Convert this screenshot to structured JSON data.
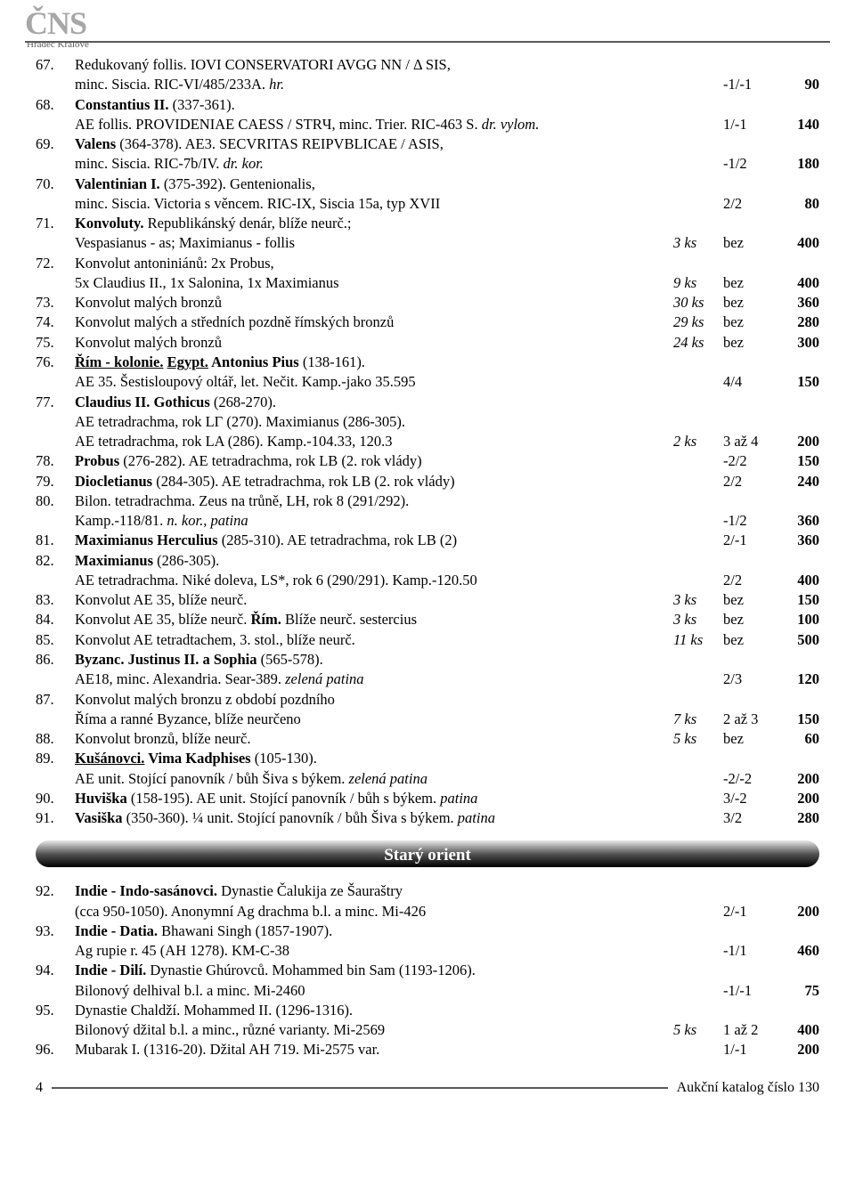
{
  "logo": {
    "main": "ČNS",
    "sub": "Hradec Králové"
  },
  "lots": [
    {
      "n": "67.",
      "lines": [
        {
          "d": [
            [
              "Redukovaný follis. IOVI CONSERVATORI AVGG NN / Δ SIS,",
              ""
            ]
          ]
        },
        {
          "d": [
            [
              "minc. Siscia. RIC-VI/485/233A. ",
              ""
            ],
            [
              "hr.",
              "i"
            ]
          ],
          "g": "-1/-1",
          "p": "90"
        }
      ]
    },
    {
      "n": "68.",
      "lines": [
        {
          "d": [
            [
              "Constantius II.",
              "b"
            ],
            [
              " (337-361).",
              ""
            ]
          ]
        },
        {
          "d": [
            [
              "AE follis. PROVIDENIAE CAESS / STRЧ, minc. Trier. RIC-463 S. ",
              ""
            ],
            [
              "dr. vylom.",
              "i"
            ]
          ],
          "g": "1/-1",
          "p": "140"
        }
      ]
    },
    {
      "n": "69.",
      "lines": [
        {
          "d": [
            [
              "Valens",
              "b"
            ],
            [
              " (364-378). AE3. SECVRITAS REIPVBLICAE / ASIS,",
              ""
            ]
          ]
        },
        {
          "d": [
            [
              "minc. Siscia. RIC-7b/IV. ",
              ""
            ],
            [
              "dr. kor.",
              "i"
            ]
          ],
          "g": "-1/2",
          "p": "180"
        }
      ]
    },
    {
      "n": "70.",
      "lines": [
        {
          "d": [
            [
              "Valentinian I.",
              "b"
            ],
            [
              " (375-392). Gentenionalis,",
              ""
            ]
          ]
        },
        {
          "d": [
            [
              "minc. Siscia. Victoria s věncem. RIC-IX, Siscia 15a, typ XVII",
              ""
            ]
          ],
          "g": "2/2",
          "p": "80"
        }
      ]
    },
    {
      "n": "71.",
      "lines": [
        {
          "d": [
            [
              "Konvoluty.",
              "b"
            ],
            [
              " Republikánský denár, blíže neurč.;",
              ""
            ]
          ]
        },
        {
          "d": [
            [
              "Vespasianus - as; Maximianus - follis",
              ""
            ]
          ],
          "q": "3 ks",
          "g": "bez",
          "p": "400"
        }
      ]
    },
    {
      "n": "72.",
      "lines": [
        {
          "d": [
            [
              "Konvolut antoniniánů: 2x Probus,",
              ""
            ]
          ]
        },
        {
          "d": [
            [
              "5x Claudius II., 1x Salonina, 1x Maximianus",
              ""
            ]
          ],
          "q": "9 ks",
          "g": "bez",
          "p": "400"
        }
      ]
    },
    {
      "n": "73.",
      "lines": [
        {
          "d": [
            [
              "Konvolut malých bronzů",
              ""
            ]
          ],
          "q": "30 ks",
          "g": "bez",
          "p": "360"
        }
      ]
    },
    {
      "n": "74.",
      "lines": [
        {
          "d": [
            [
              "Konvolut malých a středních pozdně římských bronzů",
              ""
            ]
          ],
          "q": "29 ks",
          "g": "bez",
          "p": "280"
        }
      ]
    },
    {
      "n": "75.",
      "lines": [
        {
          "d": [
            [
              "Konvolut malých bronzů",
              ""
            ]
          ],
          "q": "24 ks",
          "g": "bez",
          "p": "300"
        }
      ]
    },
    {
      "n": "76.",
      "lines": [
        {
          "d": [
            [
              "Řím - kolonie.",
              "bu"
            ],
            [
              " ",
              "b"
            ],
            [
              "Egypt.",
              "bu"
            ],
            [
              " Antonius Pius",
              "b"
            ],
            [
              " (138-161).",
              ""
            ]
          ]
        },
        {
          "d": [
            [
              "AE 35. Šestisloupový oltář, let. Nečit. Kamp.-jako 35.595",
              ""
            ]
          ],
          "g": "4/4",
          "p": "150"
        }
      ]
    },
    {
      "n": "77.",
      "lines": [
        {
          "d": [
            [
              "Claudius II. Gothicus",
              "b"
            ],
            [
              " (268-270).",
              ""
            ]
          ]
        },
        {
          "d": [
            [
              "AE tetradrachma, rok LΓ (270). Maximianus (286-305).",
              ""
            ]
          ]
        },
        {
          "d": [
            [
              "AE tetradrachma, rok LA (286). Kamp.-104.33, 120.3",
              ""
            ]
          ],
          "q": "2 ks",
          "g": "3 až 4",
          "p": "200"
        }
      ]
    },
    {
      "n": "78.",
      "lines": [
        {
          "d": [
            [
              "Probus",
              "b"
            ],
            [
              " (276-282). AE tetradrachma, rok LB (2. rok vlády)",
              ""
            ]
          ],
          "g": "-2/2",
          "p": "150"
        }
      ]
    },
    {
      "n": "79.",
      "lines": [
        {
          "d": [
            [
              "Diocletianus",
              "b"
            ],
            [
              " (284-305). AE tetradrachma, rok LB (2. rok vlády)",
              ""
            ]
          ],
          "g": "2/2",
          "p": "240"
        }
      ]
    },
    {
      "n": "80.",
      "lines": [
        {
          "d": [
            [
              "Bilon. tetradrachma. Zeus na trůně, LH, rok 8 (291/292).",
              ""
            ]
          ]
        },
        {
          "d": [
            [
              "Kamp.-118/81. ",
              ""
            ],
            [
              "n. kor., patina",
              "i"
            ]
          ],
          "g": "-1/2",
          "p": "360"
        }
      ]
    },
    {
      "n": "81.",
      "lines": [
        {
          "d": [
            [
              "Maximianus Herculius",
              "b"
            ],
            [
              " (285-310). AE tetradrachma, rok LB (2)",
              ""
            ]
          ],
          "g": "2/-1",
          "p": "360"
        }
      ]
    },
    {
      "n": "82.",
      "lines": [
        {
          "d": [
            [
              "Maximianus",
              "b"
            ],
            [
              " (286-305).",
              ""
            ]
          ]
        },
        {
          "d": [
            [
              "AE tetradrachma. Niké doleva, LS*, rok 6 (290/291). Kamp.-120.50",
              ""
            ]
          ],
          "g": "2/2",
          "p": "400"
        }
      ]
    },
    {
      "n": "83.",
      "lines": [
        {
          "d": [
            [
              "Konvolut AE 35, blíže neurč.",
              ""
            ]
          ],
          "q": "3 ks",
          "g": "bez",
          "p": "150"
        }
      ]
    },
    {
      "n": "84.",
      "lines": [
        {
          "d": [
            [
              "Konvolut AE 35, blíže neurč. ",
              ""
            ],
            [
              "Řím.",
              "b"
            ],
            [
              " Blíže neurč. sestercius",
              ""
            ]
          ],
          "q": "3 ks",
          "g": "bez",
          "p": "100"
        }
      ]
    },
    {
      "n": "85.",
      "lines": [
        {
          "d": [
            [
              "Konvolut AE tetradtachem, 3. stol., blíže neurč.",
              ""
            ]
          ],
          "q": "11 ks",
          "g": "bez",
          "p": "500"
        }
      ]
    },
    {
      "n": "86.",
      "lines": [
        {
          "d": [
            [
              "Byzanc. Justinus II. a Sophia",
              "b"
            ],
            [
              " (565-578).",
              ""
            ]
          ]
        },
        {
          "d": [
            [
              "AE18, minc. Alexandria. Sear-389. ",
              ""
            ],
            [
              "zelená patina",
              "i"
            ]
          ],
          "g": "2/3",
          "p": "120"
        }
      ]
    },
    {
      "n": "87.",
      "lines": [
        {
          "d": [
            [
              "Konvolut malých bronzu z období pozdního",
              ""
            ]
          ]
        },
        {
          "d": [
            [
              "Říma a ranné Byzance, blíže neurčeno",
              ""
            ]
          ],
          "q": "7 ks",
          "g": "2 až 3",
          "p": "150"
        }
      ]
    },
    {
      "n": "88.",
      "lines": [
        {
          "d": [
            [
              "Konvolut bronzů, blíže neurč.",
              ""
            ]
          ],
          "q": "5 ks",
          "g": "bez",
          "p": "60"
        }
      ]
    },
    {
      "n": "89.",
      "lines": [
        {
          "d": [
            [
              "Kušánovci.",
              "bu"
            ],
            [
              " Vima Kadphises",
              "b"
            ],
            [
              " (105-130).",
              ""
            ]
          ]
        },
        {
          "d": [
            [
              "AE unit. Stojící panovník / bůh Šiva s býkem. ",
              ""
            ],
            [
              "zelená patina",
              "i"
            ]
          ],
          "g": "-2/-2",
          "p": "200"
        }
      ]
    },
    {
      "n": "90.",
      "lines": [
        {
          "d": [
            [
              "Huviška",
              "b"
            ],
            [
              " (158-195). AE unit. Stojící panovník / bůh s býkem. ",
              ""
            ],
            [
              "patina",
              "i"
            ]
          ],
          "g": "3/-2",
          "p": "200"
        }
      ]
    },
    {
      "n": "91.",
      "lines": [
        {
          "d": [
            [
              "Vasiška",
              "b"
            ],
            [
              " (350-360). ¼ unit. Stojící panovník / bůh Šiva s býkem. ",
              ""
            ],
            [
              "patina",
              "i"
            ]
          ],
          "g": "3/2",
          "p": "280"
        }
      ]
    }
  ],
  "section2": {
    "title": "Starý orient"
  },
  "lots2": [
    {
      "n": "92.",
      "lines": [
        {
          "d": [
            [
              "Indie - Indo-sasánovci.",
              "b"
            ],
            [
              " Dynastie Čalukija ze Šauraštry",
              ""
            ]
          ]
        },
        {
          "d": [
            [
              "(cca 950-1050). Anonymní Ag drachma b.l. a minc. Mi-426",
              ""
            ]
          ],
          "g": "2/-1",
          "p": "200"
        }
      ]
    },
    {
      "n": "93.",
      "lines": [
        {
          "d": [
            [
              "Indie - Datia.",
              "b"
            ],
            [
              " Bhawani Singh (1857-1907).",
              ""
            ]
          ]
        },
        {
          "d": [
            [
              "Ag rupie r. 45 (AH 1278). KM-C-38",
              ""
            ]
          ],
          "g": "-1/1",
          "p": "460"
        }
      ]
    },
    {
      "n": "94.",
      "lines": [
        {
          "d": [
            [
              "Indie - Dilí.",
              "b"
            ],
            [
              " Dynastie Ghúrovců. Mohammed bin Sam (1193-1206).",
              ""
            ]
          ]
        },
        {
          "d": [
            [
              "Bilonový delhival b.l. a minc. Mi-2460",
              ""
            ]
          ],
          "g": "-1/-1",
          "p": "75"
        }
      ]
    },
    {
      "n": "95.",
      "lines": [
        {
          "d": [
            [
              "Dynastie Chaldží. Mohammed II. (1296-1316).",
              ""
            ]
          ]
        },
        {
          "d": [
            [
              "Bilonový džital b.l. a minc., různé varianty. Mi-2569",
              ""
            ]
          ],
          "q": "5 ks",
          "g": "1 až 2",
          "p": "400"
        }
      ]
    },
    {
      "n": "96.",
      "lines": [
        {
          "d": [
            [
              "Mubarak I. (1316-20). Džital AH 719. Mi-2575 var.",
              ""
            ]
          ],
          "g": "1/-1",
          "p": "200"
        }
      ]
    }
  ],
  "footer": {
    "page": "4",
    "right": "Aukční katalog číslo 130"
  }
}
